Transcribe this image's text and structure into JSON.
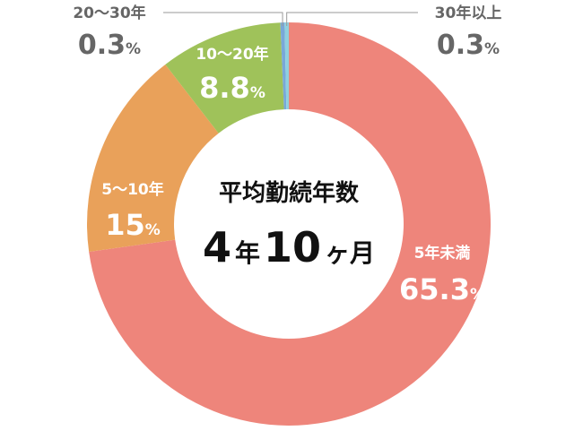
{
  "chart_data": {
    "type": "pie",
    "style": "donut",
    "percent_suffix": "%",
    "categories": [
      "5年未満",
      "5～10年",
      "10～20年",
      "20～30年",
      "30年以上"
    ],
    "values": [
      65.3,
      15,
      8.8,
      0.3,
      0.3
    ],
    "value_labels": [
      "65.3",
      "15",
      "8.8",
      "0.3",
      "0.3"
    ],
    "colors": [
      "#ee857b",
      "#e9a15a",
      "#9fc25a",
      "#79a8d8",
      "#8fd0de"
    ],
    "center": {
      "title": "平均勤続年数",
      "years": "4",
      "years_unit": "年",
      "months": "10",
      "months_unit": "ヶ月"
    }
  }
}
